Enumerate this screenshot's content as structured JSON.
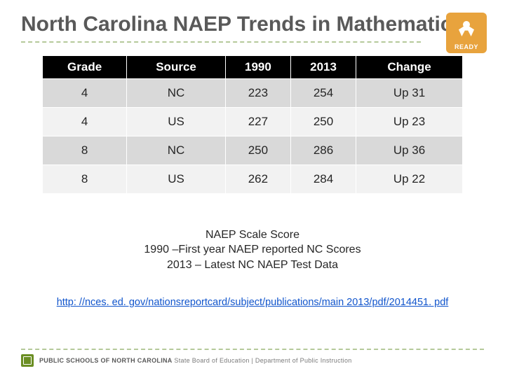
{
  "title": "North Carolina NAEP Trends in Mathematics",
  "badge": {
    "label": "READY"
  },
  "table": {
    "columns": [
      "Grade",
      "Source",
      "1990",
      "2013",
      "Change"
    ],
    "rows": [
      [
        "4",
        "NC",
        "223",
        "254",
        "Up 31"
      ],
      [
        "4",
        "US",
        "227",
        "250",
        "Up 23"
      ],
      [
        "8",
        "NC",
        "250",
        "286",
        "Up 36"
      ],
      [
        "8",
        "US",
        "262",
        "284",
        "Up 22"
      ]
    ],
    "header_bg": "#000000",
    "header_fg": "#ffffff",
    "row_odd_bg": "#d9d9d9",
    "row_even_bg": "#f2f2f2",
    "font_size": 17
  },
  "caption": {
    "line1": "NAEP Scale Score",
    "line2": "1990 –First year NAEP reported NC Scores",
    "line3": "2013 – Latest NC  NAEP Test Data"
  },
  "link": {
    "text": "http: //nces. ed. gov/nationsreportcard/subject/publications/main 2013/pdf/2014451. pdf"
  },
  "footer": {
    "org_strong": "PUBLIC SCHOOLS OF NORTH CAROLINA",
    "org_rest": " State Board of Education | Department of Public Instruction"
  },
  "colors": {
    "title": "#595959",
    "accent_dash": "#b5c99a",
    "badge_bg": "#e8a33d",
    "link": "#1155cc",
    "background": "#ffffff"
  }
}
